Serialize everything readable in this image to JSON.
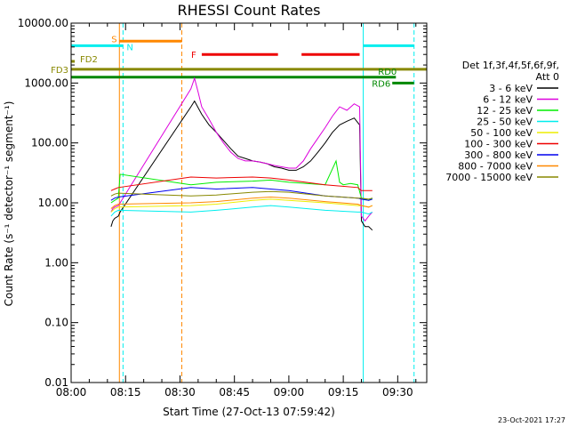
{
  "chart_data": {
    "type": "line",
    "title": "RHESSI Count Rates",
    "xlabel": "Start Time (27-Oct-13 07:59:42)",
    "ylabel": "Count Rate (s⁻¹ detector⁻¹ segment⁻¹)",
    "yscale": "log",
    "ylim": [
      0.01,
      10000
    ],
    "xlim_minutes": [
      0,
      98
    ],
    "x_tick_labels": [
      "08:00",
      "08:15",
      "08:30",
      "08:45",
      "09:00",
      "09:15",
      "09:30"
    ],
    "x_tick_minutes": [
      0,
      15,
      30,
      45,
      60,
      75,
      90
    ],
    "y_tick_labels": [
      "0.01",
      "0.10",
      "1.00",
      "10.00",
      "100.00",
      "1000.00",
      "10000.00"
    ],
    "y_tick_values": [
      0.01,
      0.1,
      1,
      10,
      100,
      1000,
      10000
    ],
    "legend_header": [
      "Det 1f,3f,4f,5f,6f,9f,",
      "Att 0"
    ],
    "series": [
      {
        "name": "3 - 6 keV",
        "color": "#000000",
        "x": [
          11,
          11.5,
          12,
          13,
          13.5,
          33,
          34,
          36,
          38,
          40,
          42,
          44,
          46,
          48,
          50,
          52,
          54,
          56,
          58,
          60,
          62,
          64,
          66,
          68,
          70,
          72,
          74,
          76,
          78,
          79.5,
          80,
          81,
          82,
          83
        ],
        "values": [
          4,
          5,
          5.5,
          6,
          7,
          400,
          500,
          300,
          200,
          150,
          110,
          80,
          60,
          55,
          50,
          48,
          45,
          40,
          38,
          35,
          35,
          40,
          50,
          70,
          100,
          150,
          200,
          230,
          260,
          200,
          5,
          4,
          4,
          3.5
        ]
      },
      {
        "name": "6 - 12 keV",
        "color": "#dd00dd",
        "x": [
          11,
          11.5,
          12,
          13,
          13.5,
          33,
          34,
          35,
          36,
          38,
          40,
          42,
          44,
          46,
          48,
          50,
          52,
          54,
          56,
          58,
          60,
          62,
          64,
          66,
          68,
          70,
          72,
          74,
          76,
          78,
          79.5,
          80,
          81,
          82,
          83
        ],
        "values": [
          7,
          8,
          8.5,
          9,
          10,
          800,
          1200,
          700,
          400,
          250,
          150,
          100,
          70,
          55,
          50,
          50,
          48,
          45,
          42,
          40,
          38,
          38,
          50,
          80,
          120,
          180,
          280,
          400,
          350,
          450,
          400,
          6,
          5,
          6,
          7
        ]
      },
      {
        "name": "12 - 25 keV",
        "color": "#00ee00",
        "x": [
          11,
          12,
          13,
          13.5,
          33,
          40,
          50,
          55,
          60,
          70,
          73,
          74,
          75,
          77,
          79,
          80,
          82,
          83
        ],
        "values": [
          10,
          11,
          12,
          30,
          20,
          22,
          23,
          24,
          22,
          20,
          50,
          22,
          20,
          21,
          20,
          12,
          11,
          12
        ]
      },
      {
        "name": "25 - 50 keV",
        "color": "#00eeee",
        "x": [
          11,
          12,
          13,
          33,
          40,
          50,
          55,
          60,
          70,
          79,
          80,
          82,
          83
        ],
        "values": [
          6,
          7,
          7.5,
          7,
          7.5,
          8.5,
          9,
          8.5,
          7.5,
          7,
          7,
          6.5,
          7
        ]
      },
      {
        "name": "50 - 100 keV",
        "color": "#eeee00",
        "x": [
          11,
          12,
          13,
          33,
          40,
          50,
          55,
          60,
          70,
          79,
          80,
          82,
          83
        ],
        "values": [
          7,
          8,
          8.5,
          9,
          9.5,
          11,
          11.5,
          11,
          10,
          9,
          9,
          8.5,
          9
        ]
      },
      {
        "name": "100 - 300 keV",
        "color": "#ee0000",
        "x": [
          11,
          12,
          13,
          33,
          40,
          50,
          55,
          60,
          70,
          79,
          80,
          82,
          83
        ],
        "values": [
          16,
          17,
          18,
          27,
          26,
          27,
          26,
          24,
          20,
          18,
          16,
          16,
          16
        ]
      },
      {
        "name": "300 - 800 keV",
        "color": "#0000ee",
        "x": [
          11,
          12,
          13,
          33,
          40,
          50,
          55,
          60,
          70,
          79,
          80,
          82,
          83
        ],
        "values": [
          11,
          12,
          12.5,
          18,
          17,
          18,
          17,
          16,
          13,
          12,
          11.5,
          11,
          11.5
        ]
      },
      {
        "name": "800 - 7000 keV",
        "color": "#ff8800",
        "x": [
          11,
          12,
          13,
          33,
          40,
          50,
          55,
          60,
          70,
          79,
          80,
          82,
          83
        ],
        "values": [
          8,
          9,
          9.5,
          10,
          10.5,
          12,
          12.5,
          12,
          10.5,
          9.5,
          9,
          8.5,
          9
        ]
      },
      {
        "name": "7000 - 15000 keV",
        "color": "#888800",
        "x": [
          11,
          12,
          13,
          33,
          40,
          50,
          55,
          60,
          70,
          79,
          80,
          82,
          83
        ],
        "values": [
          13,
          14,
          14.5,
          13,
          13.5,
          15,
          15.5,
          15,
          13,
          12,
          12,
          11.5,
          12
        ]
      }
    ],
    "flag_bars": [
      {
        "label": "S",
        "color": "#ff8800",
        "x_start": 13.3,
        "x_end": 30.5,
        "level": 5000
      },
      {
        "label": "N",
        "color": "#00eeee",
        "x_start": 0,
        "x_end": 14.3,
        "level": 4200
      },
      {
        "label": "N",
        "color": "#00eeee",
        "x_start": 80.5,
        "x_end": 94.5,
        "level": 4200
      },
      {
        "label": "F",
        "color": "#ee0000",
        "x_start": 36,
        "x_end": 57,
        "level": 3000
      },
      {
        "label": "F",
        "color": "#ee0000",
        "x_start": 63.5,
        "x_end": 79.5,
        "level": 3000
      },
      {
        "label": "FD2",
        "color": "#888800",
        "x_start": 0,
        "x_end": 1,
        "level": 2300
      },
      {
        "label": "FD3",
        "color": "#888800",
        "x_start": 0,
        "x_end": 98,
        "level": 1700
      },
      {
        "label": "RD0",
        "color": "#008800",
        "x_start": 0,
        "x_end": 89.5,
        "level": 1250
      },
      {
        "label": "RD6",
        "color": "#008800",
        "x_start": 88.5,
        "x_end": 94.5,
        "level": 1000
      }
    ],
    "vertical_markers": [
      {
        "x": 0,
        "color": "#00eeee",
        "style": "solid"
      },
      {
        "x": 13.3,
        "color": "#ff8800",
        "style": "solid"
      },
      {
        "x": 14.3,
        "color": "#00eeee",
        "style": "dashed"
      },
      {
        "x": 30.5,
        "color": "#ff8800",
        "style": "dashed"
      },
      {
        "x": 80.5,
        "color": "#00eeee",
        "style": "solid"
      },
      {
        "x": 94.5,
        "color": "#00eeee",
        "style": "dashed"
      }
    ],
    "timestamp": "23-Oct-2021 17:27"
  }
}
